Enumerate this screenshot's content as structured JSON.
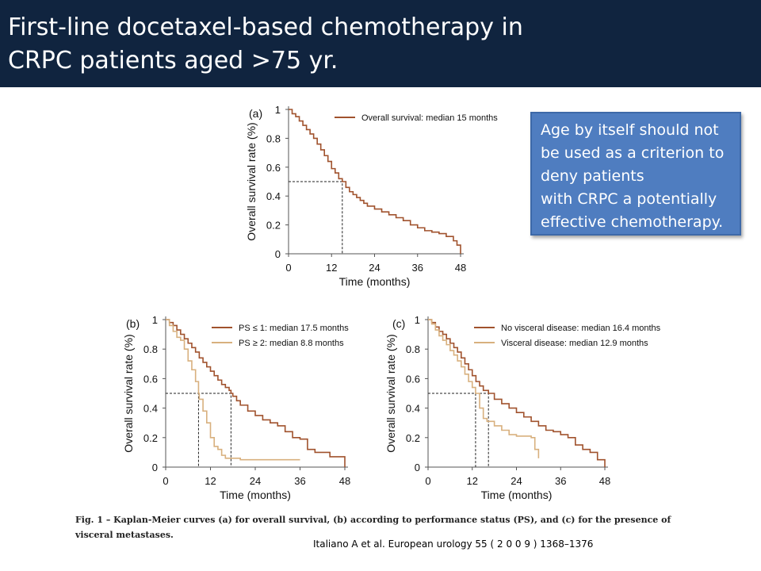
{
  "slide": {
    "title_lines": [
      "First-line docetaxel-based chemotherapy in",
      "CRPC patients aged >75 yr."
    ],
    "callout_lines": [
      "Age by itself should not",
      "be used as a criterion to",
      "deny patients",
      "with CRPC a potentially",
      "effective chemotherapy."
    ],
    "caption_lines": [
      "Fig. 1 – Kaplan-Meier curves (a) for overall survival, (b) according to performance status (PS), and (c) for the presence of",
      "visceral metastases."
    ],
    "citation": "Italiano A et al. European urology 55 ( 2 0 0 9 ) 1368–1376",
    "colors": {
      "header_bg": "#10243f",
      "callout_bg": "#4f7dc0",
      "series_dark": "#a0522d",
      "series_light": "#d8b07e"
    }
  },
  "chart_data": [
    {
      "type": "line",
      "panel_label": "(a)",
      "xlabel": "Time (months)",
      "ylabel": "Overall survival rate (%)",
      "xlim": [
        0,
        48
      ],
      "ylim": [
        0,
        1
      ],
      "xticks": [
        "0",
        "12",
        "24",
        "36",
        "48"
      ],
      "yticks": [
        "0",
        "0.2",
        "0.4",
        "0.6",
        "0.8",
        "1"
      ],
      "legend_position": "top-right",
      "median_lines": [
        {
          "x": 15,
          "y": 0.5
        }
      ],
      "series": [
        {
          "name": "Overall survival: median 15 months",
          "color": "#a0522d",
          "x": [
            0,
            1,
            2,
            3,
            4,
            5,
            6,
            7,
            8,
            9,
            10,
            11,
            12,
            13,
            14,
            15,
            16,
            17,
            18,
            19,
            20,
            21,
            22,
            24,
            26,
            28,
            30,
            32,
            34,
            36,
            38,
            40,
            42,
            44,
            46,
            47,
            48
          ],
          "y": [
            1,
            0.97,
            0.95,
            0.92,
            0.89,
            0.86,
            0.83,
            0.8,
            0.76,
            0.72,
            0.68,
            0.64,
            0.59,
            0.56,
            0.52,
            0.5,
            0.46,
            0.43,
            0.41,
            0.39,
            0.37,
            0.35,
            0.33,
            0.31,
            0.29,
            0.27,
            0.25,
            0.23,
            0.2,
            0.18,
            0.16,
            0.15,
            0.14,
            0.12,
            0.09,
            0.06,
            0
          ]
        }
      ]
    },
    {
      "type": "line",
      "panel_label": "(b)",
      "xlabel": "Time (months)",
      "ylabel": "Overall survival rate (%)",
      "xlim": [
        0,
        48
      ],
      "ylim": [
        0,
        1
      ],
      "xticks": [
        "0",
        "12",
        "24",
        "36",
        "48"
      ],
      "yticks": [
        "0",
        "0.2",
        "0.4",
        "0.6",
        "0.8",
        "1"
      ],
      "legend_position": "top-right",
      "median_lines": [
        {
          "x": 8.8,
          "y": 0.5
        },
        {
          "x": 17.5,
          "y": 0.5
        }
      ],
      "series": [
        {
          "name": "PS ≤ 1: median 17.5 months",
          "color": "#a0522d",
          "x": [
            0,
            1,
            2,
            3,
            4,
            5,
            6,
            7,
            8,
            9,
            10,
            11,
            12,
            13,
            14,
            15,
            16,
            17,
            17.5,
            18,
            19,
            20,
            22,
            24,
            26,
            28,
            30,
            32,
            34,
            36,
            38,
            40,
            42,
            44,
            46,
            47,
            48
          ],
          "y": [
            1,
            0.98,
            0.96,
            0.93,
            0.9,
            0.87,
            0.84,
            0.81,
            0.78,
            0.74,
            0.71,
            0.68,
            0.65,
            0.62,
            0.59,
            0.56,
            0.54,
            0.52,
            0.5,
            0.48,
            0.45,
            0.42,
            0.38,
            0.35,
            0.32,
            0.3,
            0.28,
            0.24,
            0.2,
            0.19,
            0.12,
            0.1,
            0.1,
            0.07,
            0.07,
            0.07,
            0
          ]
        },
        {
          "name": "PS ≥ 2: median 8.8 months",
          "color": "#d8b07e",
          "x": [
            0,
            1,
            2,
            3,
            4,
            5,
            6,
            7,
            8,
            8.8,
            9,
            10,
            11,
            12,
            13,
            14,
            15,
            16,
            20,
            24,
            30,
            36
          ],
          "y": [
            1,
            0.96,
            0.92,
            0.88,
            0.86,
            0.8,
            0.72,
            0.66,
            0.58,
            0.5,
            0.46,
            0.38,
            0.3,
            0.2,
            0.14,
            0.12,
            0.08,
            0.06,
            0.05,
            0.05,
            0.05,
            0.05
          ]
        }
      ]
    },
    {
      "type": "line",
      "panel_label": "(c)",
      "xlabel": "Time (months)",
      "ylabel": "Overall survival rate (%)",
      "xlim": [
        0,
        48
      ],
      "ylim": [
        0,
        1
      ],
      "xticks": [
        "0",
        "12",
        "24",
        "36",
        "48"
      ],
      "yticks": [
        "0",
        "0.2",
        "0.4",
        "0.6",
        "0.8",
        "1"
      ],
      "legend_position": "top-right",
      "median_lines": [
        {
          "x": 12.9,
          "y": 0.5
        },
        {
          "x": 16.4,
          "y": 0.5
        }
      ],
      "series": [
        {
          "name": "No visceral disease: median 16.4 months",
          "color": "#a0522d",
          "x": [
            0,
            1,
            2,
            3,
            4,
            5,
            6,
            7,
            8,
            9,
            10,
            11,
            12,
            13,
            14,
            15,
            16.4,
            18,
            20,
            22,
            24,
            26,
            28,
            30,
            32,
            34,
            36,
            38,
            40,
            42,
            44,
            46,
            47,
            48
          ],
          "y": [
            1,
            0.98,
            0.95,
            0.92,
            0.9,
            0.87,
            0.84,
            0.81,
            0.78,
            0.74,
            0.7,
            0.66,
            0.62,
            0.58,
            0.55,
            0.52,
            0.5,
            0.46,
            0.43,
            0.4,
            0.37,
            0.34,
            0.31,
            0.28,
            0.25,
            0.24,
            0.22,
            0.2,
            0.15,
            0.12,
            0.1,
            0.05,
            0.05,
            0
          ]
        },
        {
          "name": "Visceral disease: median 12.9 months",
          "color": "#d8b07e",
          "x": [
            0,
            1,
            2,
            3,
            4,
            5,
            6,
            7,
            8,
            9,
            10,
            11,
            12,
            12.9,
            14,
            15,
            16,
            18,
            20,
            22,
            24,
            26,
            28,
            29,
            30
          ],
          "y": [
            1,
            0.97,
            0.93,
            0.89,
            0.86,
            0.83,
            0.79,
            0.76,
            0.72,
            0.68,
            0.63,
            0.58,
            0.54,
            0.5,
            0.4,
            0.33,
            0.31,
            0.28,
            0.25,
            0.22,
            0.21,
            0.21,
            0.2,
            0.12,
            0.06
          ]
        }
      ]
    }
  ]
}
